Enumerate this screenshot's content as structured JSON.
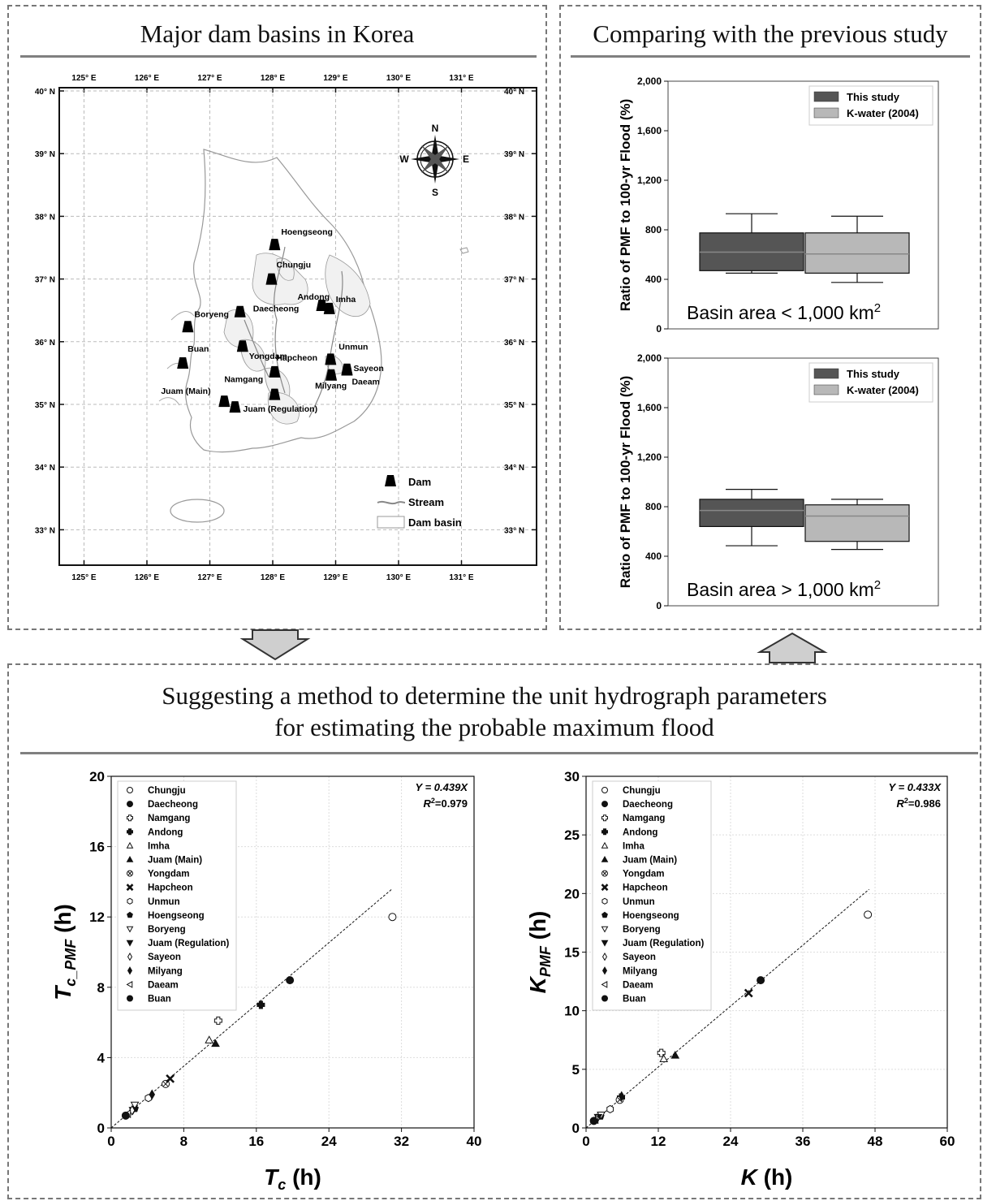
{
  "panels": {
    "map_title": "Major dam basins in Korea",
    "compare_title": "Comparing with the previous study",
    "method_title_line1": "Suggesting a method to determine the unit hydrograph parameters",
    "method_title_line2": "for estimating the probable maximum flood"
  },
  "map": {
    "lon_ticks": [
      "125° E",
      "126° E",
      "127° E",
      "128° E",
      "129° E",
      "130° E",
      "131° E"
    ],
    "lon_values": [
      125,
      126,
      127,
      128,
      129,
      130,
      131
    ],
    "lat_ticks": [
      "40° N",
      "39° N",
      "38° N",
      "37° N",
      "36° N",
      "35° N",
      "34° N",
      "33° N"
    ],
    "lat_values": [
      40,
      39,
      38,
      37,
      36,
      35,
      34,
      33
    ],
    "lon_range": [
      124.5,
      131.7
    ],
    "lat_range": [
      32.5,
      40.0
    ],
    "compass": {
      "n": "N",
      "s": "S",
      "e": "E",
      "w": "W"
    },
    "legend": {
      "dam": "Dam",
      "stream": "Stream",
      "basin": "Dam basin"
    },
    "dams": [
      {
        "name": "Hoengseong",
        "lon": 128.03,
        "lat": 37.55
      },
      {
        "name": "Chungju",
        "lon": 127.98,
        "lat": 37.0
      },
      {
        "name": "Andong",
        "lon": 128.78,
        "lat": 36.58
      },
      {
        "name": "Imha",
        "lon": 128.9,
        "lat": 36.53
      },
      {
        "name": "Daecheong",
        "lon": 127.48,
        "lat": 36.48
      },
      {
        "name": "Boryeng",
        "lon": 126.65,
        "lat": 36.24
      },
      {
        "name": "Yongdam",
        "lon": 127.52,
        "lat": 35.93
      },
      {
        "name": "Buan",
        "lon": 126.57,
        "lat": 35.66
      },
      {
        "name": "Unmun",
        "lon": 128.92,
        "lat": 35.72
      },
      {
        "name": "Hapcheon",
        "lon": 128.03,
        "lat": 35.52
      },
      {
        "name": "Sayeon",
        "lon": 129.18,
        "lat": 35.56
      },
      {
        "name": "Milyang",
        "lon": 128.93,
        "lat": 35.47
      },
      {
        "name": "Daeam",
        "lon": 129.18,
        "lat": 35.55
      },
      {
        "name": "Namgang",
        "lon": 128.03,
        "lat": 35.16
      },
      {
        "name": "Juam (Main)",
        "lon": 127.23,
        "lat": 35.05
      },
      {
        "name": "Juam (Regulation)",
        "lon": 127.4,
        "lat": 34.96
      }
    ]
  },
  "boxplots": [
    {
      "ylabel": "Ratio of PMF to 100-yr Flood (%)",
      "y_ticks": [
        "0",
        "400",
        "800",
        "1,200",
        "1,600",
        "2,000"
      ],
      "ylim": [
        0,
        2000
      ],
      "annotation": "Basin area < 1,000 km",
      "annotation_sup": "2",
      "legend": [
        "This study",
        "K-water (2004)"
      ],
      "colors": [
        "#555555",
        "#b8b8b8"
      ],
      "boxes": [
        {
          "name": "This study",
          "whislo": 450,
          "q1": 470,
          "med": 620,
          "q3": 775,
          "whishi": 930
        },
        {
          "name": "K-water (2004)",
          "whislo": 375,
          "q1": 450,
          "med": 605,
          "q3": 775,
          "whishi": 910
        }
      ]
    },
    {
      "ylabel": "Ratio of PMF to 100-yr Flood (%)",
      "y_ticks": [
        "0",
        "400",
        "800",
        "1,200",
        "1,600",
        "2,000"
      ],
      "ylim": [
        0,
        2000
      ],
      "annotation": "Basin area > 1,000 km",
      "annotation_sup": "2",
      "legend": [
        "This study",
        "K-water (2004)"
      ],
      "colors": [
        "#555555",
        "#b8b8b8"
      ],
      "boxes": [
        {
          "name": "This study",
          "whislo": 485,
          "q1": 640,
          "med": 770,
          "q3": 860,
          "whishi": 940
        },
        {
          "name": "K-water (2004)",
          "whislo": 455,
          "q1": 520,
          "med": 725,
          "q3": 815,
          "whishi": 860
        }
      ]
    }
  ],
  "chart_data": [
    {
      "type": "scatter",
      "xlabel_main": "T",
      "xlabel_sub": "c",
      "xlabel_unit": " (h)",
      "ylabel_main": "T",
      "ylabel_sub": "c_PMF",
      "ylabel_unit": " (h)",
      "xlim": [
        0,
        40
      ],
      "ylim": [
        0,
        20
      ],
      "x_ticks": [
        0,
        8,
        16,
        24,
        32,
        40
      ],
      "y_ticks": [
        0,
        4,
        8,
        12,
        16,
        20
      ],
      "equation": "Y = 0.439X",
      "r2_prefix": "R",
      "r2_sup": "2",
      "r2_value": "=0.979",
      "fit_slope": 0.439,
      "fit_x": [
        0,
        31
      ],
      "points": [
        {
          "name": "Chungju",
          "x": 31.0,
          "y": 12.0
        },
        {
          "name": "Daecheong",
          "x": 19.7,
          "y": 8.4
        },
        {
          "name": "Namgang",
          "x": 11.8,
          "y": 6.1
        },
        {
          "name": "Andong",
          "x": 16.5,
          "y": 7.0
        },
        {
          "name": "Imha",
          "x": 10.8,
          "y": 5.0
        },
        {
          "name": "Juam (Main)",
          "x": 11.5,
          "y": 4.8
        },
        {
          "name": "Yongdam",
          "x": 6.0,
          "y": 2.5
        },
        {
          "name": "Hapcheon",
          "x": 6.5,
          "y": 2.8
        },
        {
          "name": "Unmun",
          "x": 4.1,
          "y": 1.7
        },
        {
          "name": "Hoengseong",
          "x": 2.6,
          "y": 1.1
        },
        {
          "name": "Boryeng",
          "x": 2.6,
          "y": 1.3
        },
        {
          "name": "Juam (Regulation)",
          "x": 2.4,
          "y": 1.0
        },
        {
          "name": "Sayeon",
          "x": 2.3,
          "y": 1.0
        },
        {
          "name": "Milyang",
          "x": 4.5,
          "y": 1.9
        },
        {
          "name": "Daeam",
          "x": 1.8,
          "y": 0.8
        },
        {
          "name": "Buan",
          "x": 1.6,
          "y": 0.7
        }
      ]
    },
    {
      "type": "scatter",
      "xlabel_main": "K",
      "xlabel_sub": "",
      "xlabel_unit": " (h)",
      "ylabel_main": "K",
      "ylabel_sub": "PMF",
      "ylabel_unit": " (h)",
      "xlim": [
        0,
        60
      ],
      "ylim": [
        0,
        30
      ],
      "x_ticks": [
        0,
        12,
        24,
        36,
        48,
        60
      ],
      "y_ticks": [
        0,
        5,
        10,
        15,
        20,
        25,
        30
      ],
      "equation": "Y = 0.433X",
      "r2_prefix": "R",
      "r2_sup": "2",
      "r2_value": "=0.986",
      "fit_slope": 0.433,
      "fit_x": [
        0,
        47
      ],
      "points": [
        {
          "name": "Chungju",
          "x": 46.8,
          "y": 18.2
        },
        {
          "name": "Daecheong",
          "x": 29.0,
          "y": 12.6
        },
        {
          "name": "Namgang",
          "x": 12.5,
          "y": 6.4
        },
        {
          "name": "Andong",
          "x": 5.8,
          "y": 2.6
        },
        {
          "name": "Imha",
          "x": 12.9,
          "y": 5.9
        },
        {
          "name": "Juam (Main)",
          "x": 14.8,
          "y": 6.2
        },
        {
          "name": "Yongdam",
          "x": 5.6,
          "y": 2.4
        },
        {
          "name": "Hapcheon",
          "x": 27.0,
          "y": 11.5
        },
        {
          "name": "Unmun",
          "x": 4.0,
          "y": 1.6
        },
        {
          "name": "Hoengseong",
          "x": 2.4,
          "y": 1.0
        },
        {
          "name": "Boryeng",
          "x": 2.5,
          "y": 1.1
        },
        {
          "name": "Juam (Regulation)",
          "x": 2.0,
          "y": 0.9
        },
        {
          "name": "Sayeon",
          "x": 1.8,
          "y": 0.8
        },
        {
          "name": "Milyang",
          "x": 5.9,
          "y": 2.7
        },
        {
          "name": "Daeam",
          "x": 1.5,
          "y": 0.7
        },
        {
          "name": "Buan",
          "x": 1.3,
          "y": 0.6
        }
      ]
    }
  ],
  "scatter_legend": [
    {
      "name": "Chungju",
      "marker": "circle-open"
    },
    {
      "name": "Daecheong",
      "marker": "circle"
    },
    {
      "name": "Namgang",
      "marker": "plus-open"
    },
    {
      "name": "Andong",
      "marker": "plus"
    },
    {
      "name": "Imha",
      "marker": "triangle-open"
    },
    {
      "name": "Juam (Main)",
      "marker": "triangle"
    },
    {
      "name": "Yongdam",
      "marker": "circle-x"
    },
    {
      "name": "Hapcheon",
      "marker": "x"
    },
    {
      "name": "Unmun",
      "marker": "hexagon-open"
    },
    {
      "name": "Hoengseong",
      "marker": "pentagon"
    },
    {
      "name": "Boryeng",
      "marker": "triangle-down-open"
    },
    {
      "name": "Juam (Regulation)",
      "marker": "triangle-down"
    },
    {
      "name": "Sayeon",
      "marker": "diamond-open"
    },
    {
      "name": "Milyang",
      "marker": "diamond"
    },
    {
      "name": "Daeam",
      "marker": "triangle-left-open"
    },
    {
      "name": "Buan",
      "marker": "circle"
    }
  ]
}
